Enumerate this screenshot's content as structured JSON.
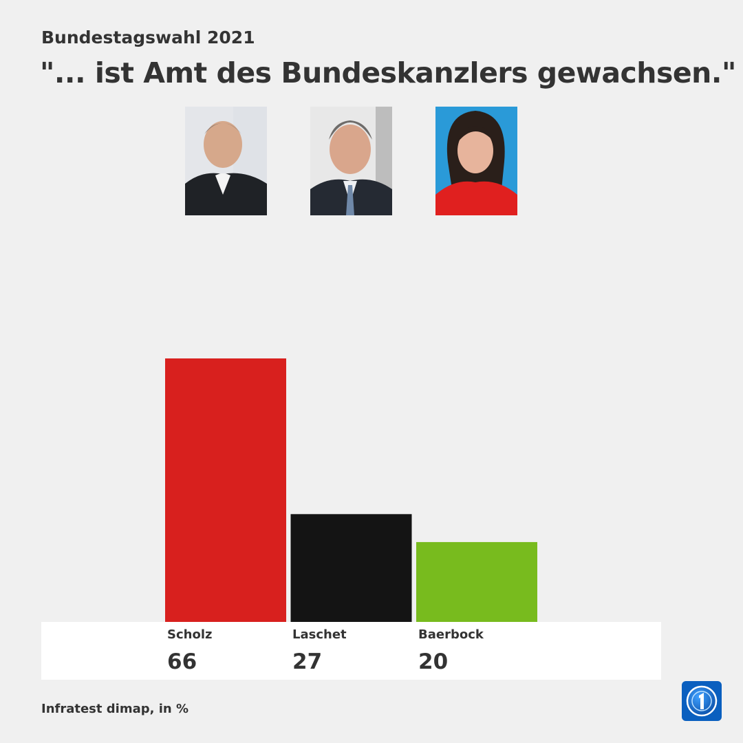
{
  "header": {
    "subtitle": "Bundestagswahl 2021",
    "title": "\"... ist Amt des Bundeskanzlers gewachsen.\""
  },
  "source": "Infratest dimap, in %",
  "colors": {
    "background": "#f0f0f0",
    "text": "#333333",
    "scholz": "#d8201e",
    "laschet": "#141414",
    "baerbock": "#78bb1e",
    "logo": "#0a5fbf"
  },
  "icons": [
    "scholz-photo",
    "laschet-photo",
    "baerbock-photo",
    "tagesschau-logo-icon"
  ],
  "chart_data": {
    "type": "bar",
    "categories": [
      "Scholz",
      "Laschet",
      "Baerbock"
    ],
    "values": [
      66,
      27,
      20
    ],
    "value_labels": [
      "66",
      "27",
      "20"
    ],
    "ylim": [
      0,
      66
    ],
    "unit": "%",
    "grid": false
  }
}
